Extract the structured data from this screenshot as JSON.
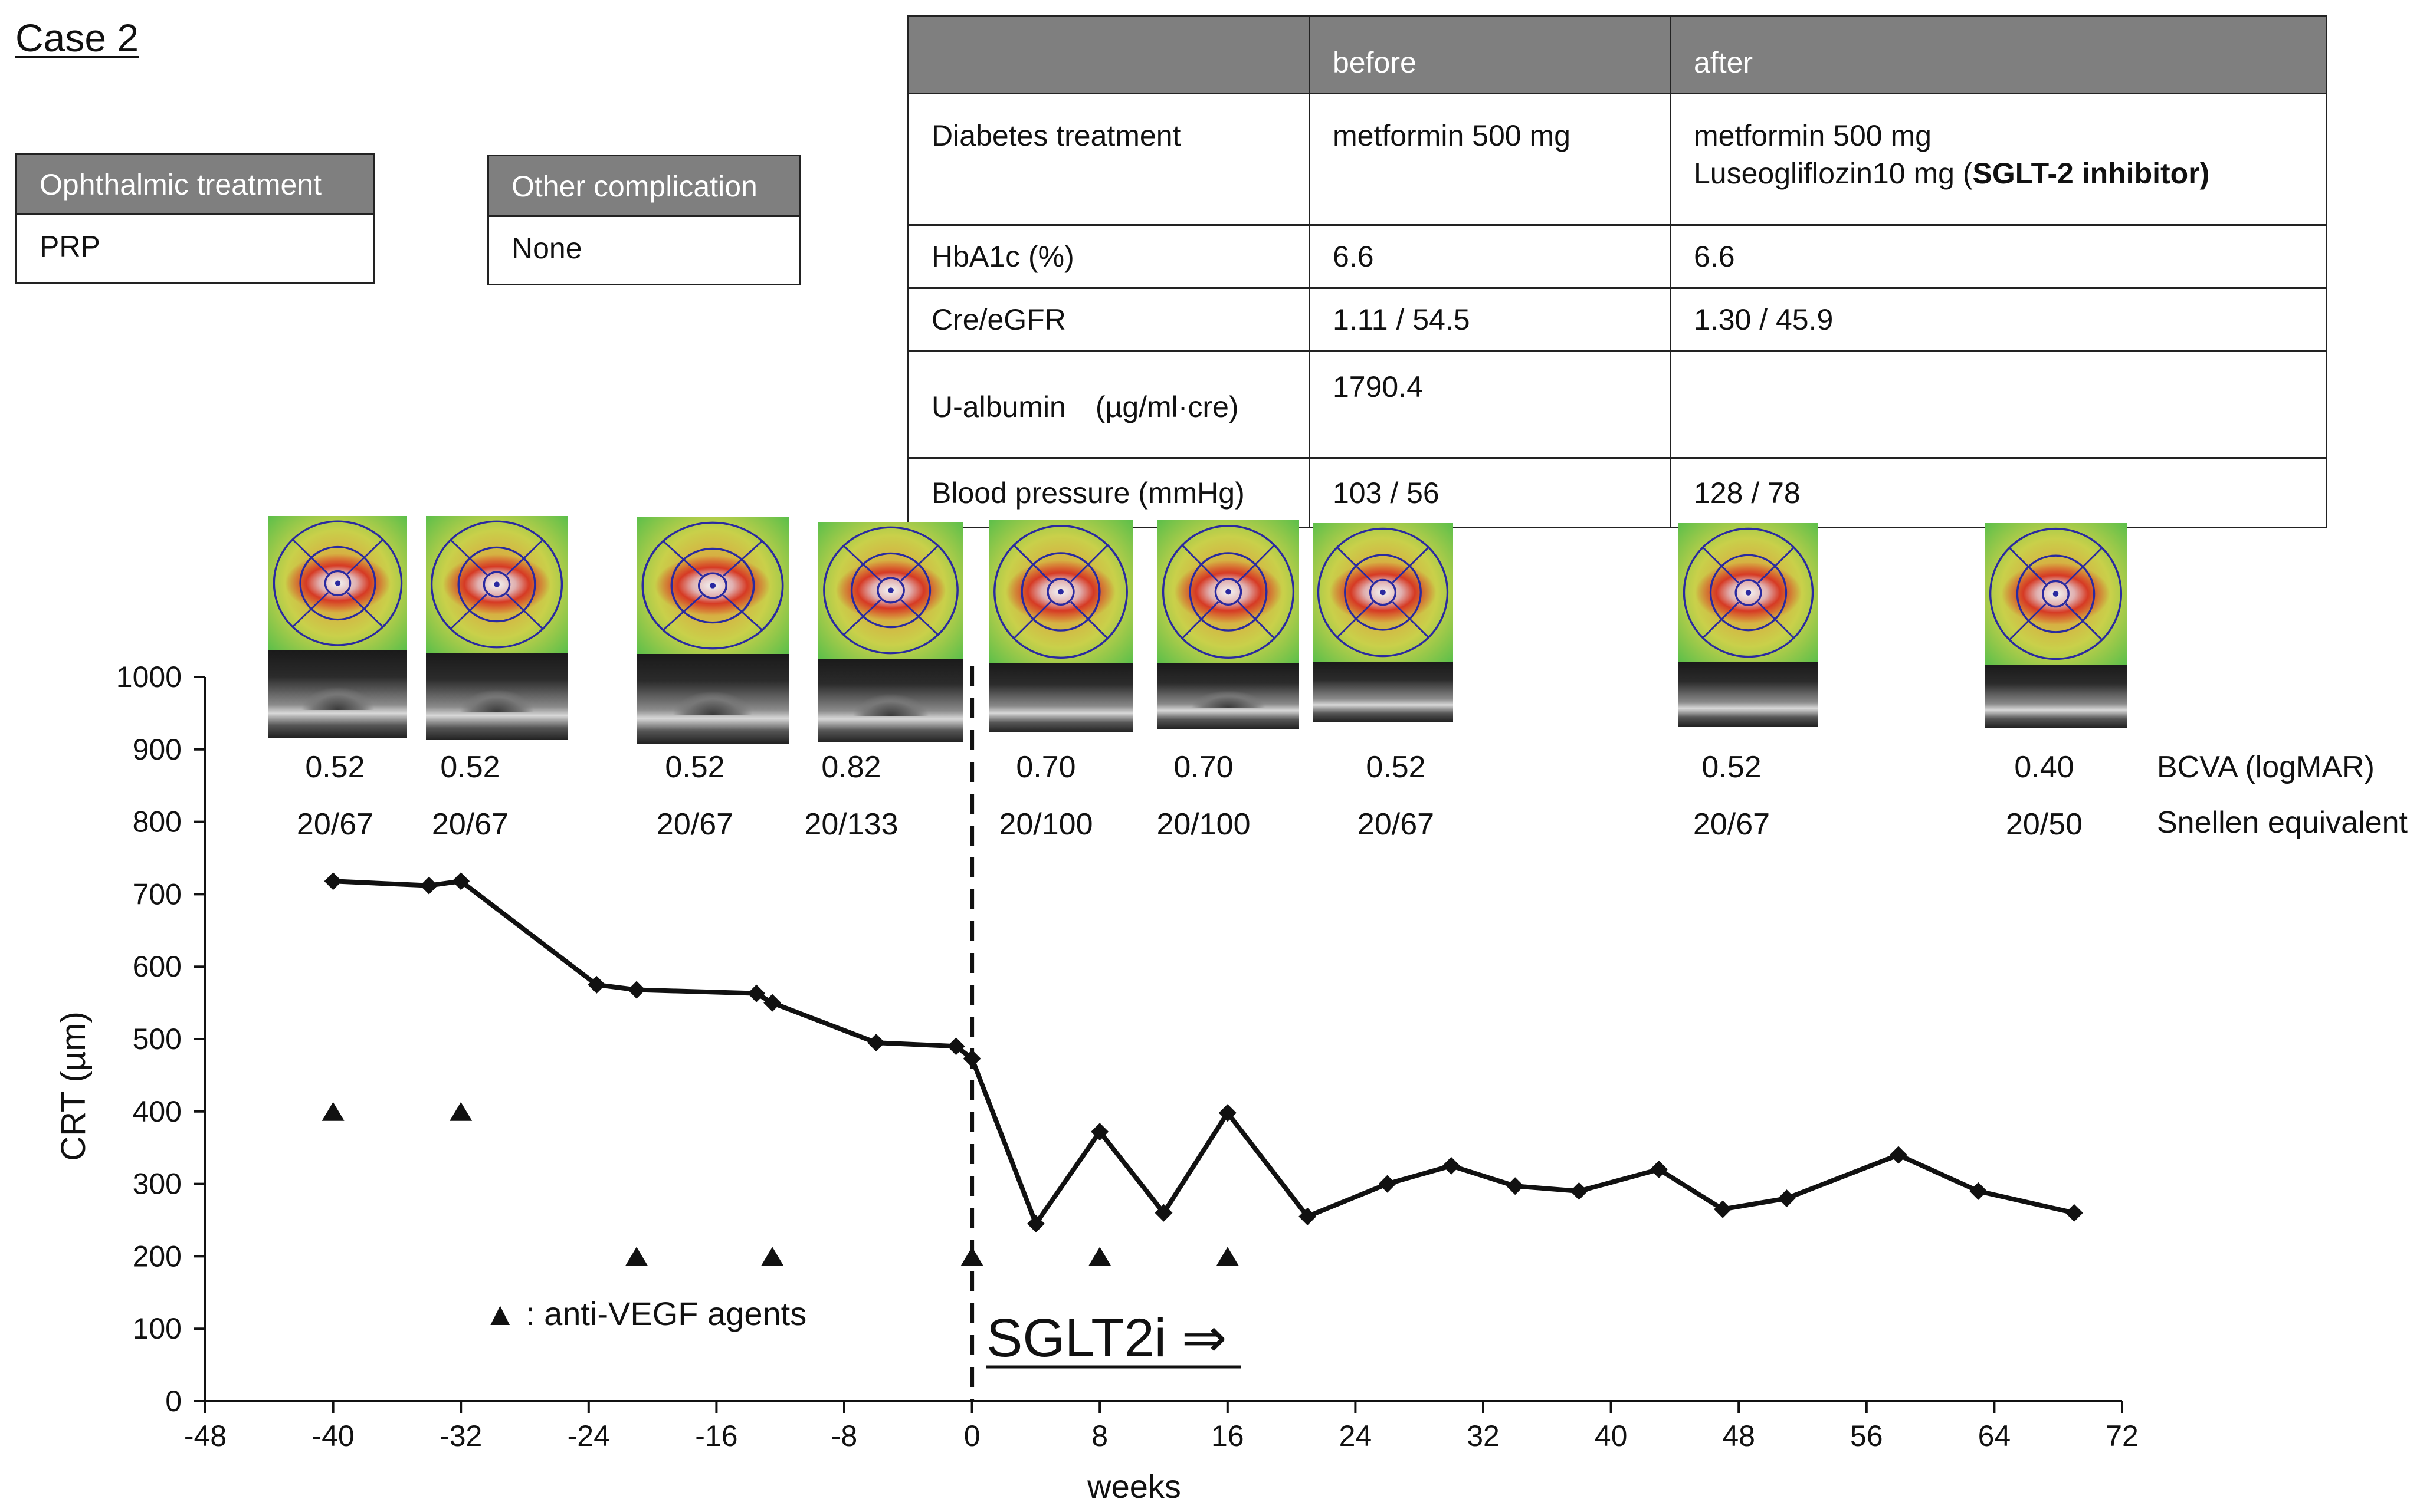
{
  "case_title": "Case 2",
  "ophthalmic": {
    "header": "Ophthalmic treatment",
    "value": "PRP"
  },
  "other": {
    "header": "Other complication",
    "value": "None"
  },
  "table": {
    "headers": [
      "",
      "before",
      "after"
    ],
    "rows": [
      {
        "label": "Diabetes treatment",
        "before": "metformin 500 mg",
        "after_line1": "metformin 500 mg",
        "after_line2_prefix": "Luseogliflozin10 mg (",
        "after_line2_bold": "SGLT-2 inhibitor)"
      },
      {
        "label": "HbA1c (%)",
        "before": "6.6",
        "after": "6.6"
      },
      {
        "label": "Cre/eGFR",
        "before": "1.11 / 54.5",
        "after": "1.30 / 45.9"
      },
      {
        "label": "U-albumin　(µg/ml·cre)",
        "before": "1790.4",
        "after": ""
      },
      {
        "label": "Blood pressure (mmHg)",
        "before": "103 / 56",
        "after": "128 / 78"
      }
    ]
  },
  "visual_acuity": {
    "row_label_logmar": "BCVA (logMAR)",
    "row_label_snellen": "Snellen equivalent",
    "entries": [
      {
        "logmar": "0.52",
        "snellen": "20/67"
      },
      {
        "logmar": "0.52",
        "snellen": "20/67"
      },
      {
        "logmar": "0.52",
        "snellen": "20/67"
      },
      {
        "logmar": "0.82",
        "snellen": "20/133"
      },
      {
        "logmar": "0.70",
        "snellen": "20/100"
      },
      {
        "logmar": "0.70",
        "snellen": "20/100"
      },
      {
        "logmar": "0.52",
        "snellen": "20/67"
      },
      {
        "logmar": "0.52",
        "snellen": "20/67"
      },
      {
        "logmar": "0.40",
        "snellen": "20/50"
      }
    ]
  },
  "colors": {
    "line": "#111111",
    "header_gray": "#7f7f7f"
  },
  "chart_data": {
    "type": "line",
    "title": "",
    "xlabel": "weeks",
    "ylabel": "CRT (µm)",
    "xlim": [
      -48,
      72
    ],
    "ylim": [
      0,
      1000
    ],
    "xticks": [
      -48,
      -40,
      -32,
      -24,
      -16,
      -8,
      0,
      8,
      16,
      24,
      32,
      40,
      48,
      56,
      64,
      72
    ],
    "yticks": [
      0,
      100,
      200,
      300,
      400,
      500,
      600,
      700,
      800,
      900,
      1000
    ],
    "series": [
      {
        "name": "CRT",
        "x": [
          -40,
          -34,
          -32,
          -23.5,
          -21,
          -13.5,
          -12.5,
          -6,
          -1,
          0,
          4,
          8,
          12,
          16,
          21,
          26,
          30,
          34,
          38,
          43,
          47,
          51,
          58,
          63,
          69
        ],
        "y": [
          718,
          712,
          718,
          575,
          568,
          563,
          550,
          495,
          490,
          473,
          245,
          372,
          260,
          398,
          255,
          300,
          325,
          297,
          290,
          320,
          265,
          280,
          340,
          290,
          260
        ]
      }
    ],
    "anti_vegf_injections": {
      "x": [
        -40,
        -32,
        -21,
        -12.5,
        0,
        8,
        16
      ],
      "y": [
        400,
        400,
        200,
        200,
        200,
        200,
        200
      ]
    },
    "legend": "▲ : anti-VEGF agents",
    "annotation": {
      "text": "SGLT2i ⇒",
      "x": 0
    }
  }
}
